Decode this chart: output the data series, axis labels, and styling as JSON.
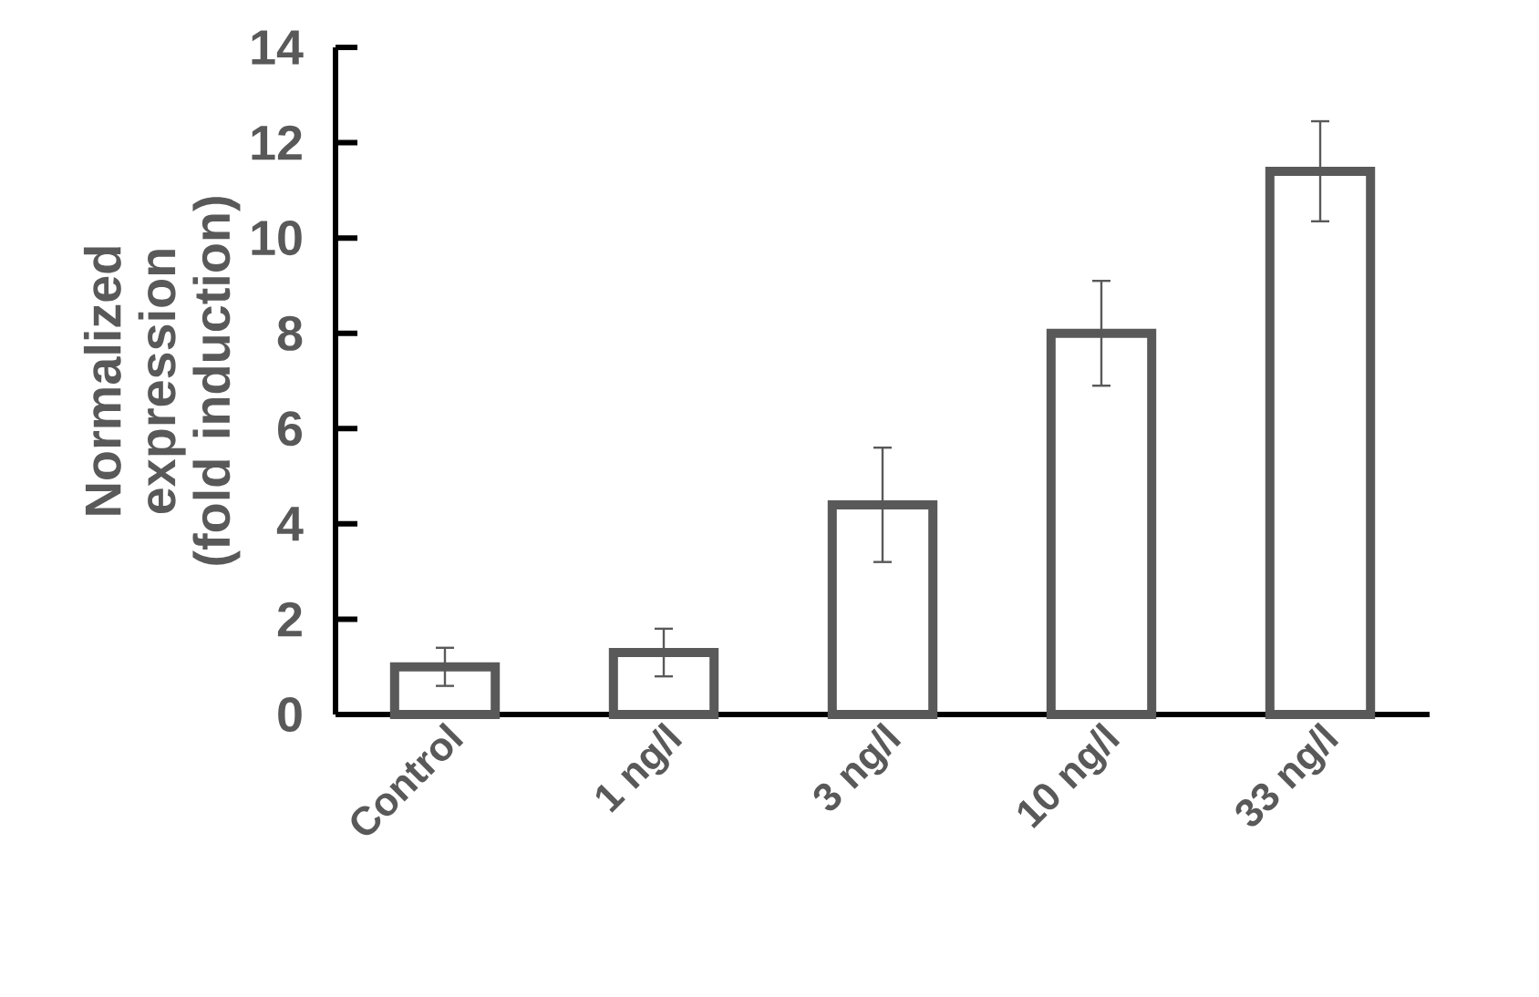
{
  "chart_data": {
    "type": "bar",
    "ylabel": "Normalized expression (fold induction)",
    "categories": [
      "Control",
      "1 ng/l",
      "3 ng/l",
      "10 ng/l",
      "33 ng/l"
    ],
    "values": [
      1.0,
      1.3,
      4.4,
      8.0,
      11.4
    ],
    "errors": [
      0.4,
      0.5,
      1.2,
      1.1,
      1.05
    ],
    "color": "#595959",
    "ylim": [
      0,
      14
    ],
    "yticks": [
      0,
      2,
      4,
      6,
      8,
      10,
      12,
      14
    ]
  }
}
